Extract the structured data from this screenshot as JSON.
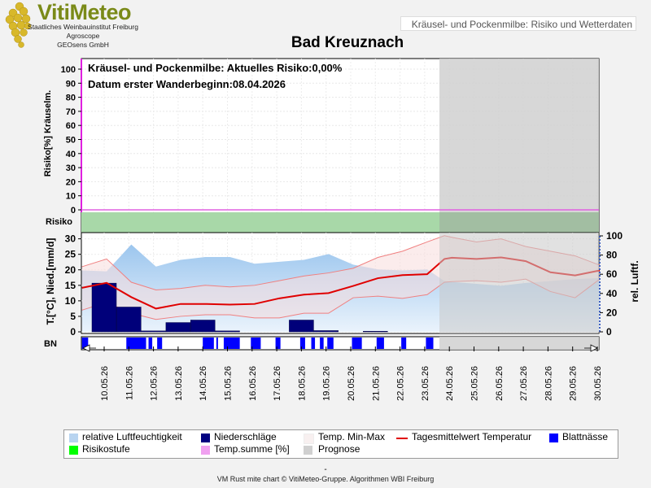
{
  "header": {
    "logo_text": "VitiMeteo",
    "logo_lines": [
      "Staatliches Weinbauinstitut Freiburg",
      "Agroscope",
      "GEOsens GmbH"
    ],
    "banner": "Kräusel- und Pockenmilbe: Risiko und Wetterdaten",
    "station": "Bad Kreuznach"
  },
  "risk_panel": {
    "info_line1": "Kräusel- und Pockenmilbe: Aktuelles Risiko:0,00%",
    "info_line2": "Datum  erster Wanderbeginn:08.04.2026",
    "ylabel": "Risiko[%] Kräuselm.",
    "band_label": "Risiko",
    "yticks": [
      0,
      10,
      20,
      30,
      40,
      50,
      60,
      70,
      80,
      90,
      100
    ]
  },
  "weather_panel": {
    "ylabel_left": "T.[°C], Nied.[mm/d]",
    "ylabel_right": "rel. Luftf.",
    "yticks_left": [
      0,
      5,
      10,
      15,
      20,
      25,
      30
    ],
    "yticks_right": [
      0,
      20,
      40,
      60,
      80,
      100
    ],
    "bn_label": "BN"
  },
  "chart_data": {
    "type": "line",
    "dates": [
      "10.05.26",
      "11.05.26",
      "12.05.26",
      "13.05.26",
      "14.05.26",
      "15.05.26",
      "16.05.26",
      "17.05.26",
      "18.05.26",
      "19.05.26",
      "20.05.26",
      "21.05.26",
      "22.05.26",
      "23.05.26",
      "24.05.26",
      "25.05.26",
      "26.05.26",
      "27.05.26",
      "28.05.26",
      "29.05.26",
      "30.05.26"
    ],
    "forecast_start": "23.05.26",
    "risk_values": [
      0,
      0,
      0,
      0,
      0,
      0,
      0,
      0,
      0,
      0,
      0,
      0,
      0,
      0,
      0,
      0,
      0,
      0,
      0,
      0,
      0,
      0
    ],
    "risk_ylim": [
      0,
      100
    ],
    "temp_ylim": [
      0,
      32
    ],
    "humidity_ylim": [
      0,
      100
    ],
    "temp_mean_x": [
      9.1,
      10.1,
      11.1,
      12.1,
      13.1,
      14.1,
      15.1,
      16.1,
      17.1,
      18.1,
      19.1,
      20.1,
      21.1,
      22.1,
      23.1,
      23.8,
      24.1,
      25.1,
      26.1,
      27.1,
      28.1,
      29.1,
      30.1
    ],
    "temp_mean": [
      14.2,
      15.8,
      11.2,
      7.5,
      9.0,
      9.0,
      8.8,
      9.0,
      10.8,
      12.0,
      12.5,
      14.8,
      17.3,
      18.3,
      18.6,
      23.5,
      23.9,
      23.5,
      24.0,
      22.8,
      19.2,
      18.2,
      19.8
    ],
    "temp_min": [
      7,
      9.5,
      6,
      4,
      5,
      5.5,
      5.5,
      4.5,
      4.5,
      6,
      6,
      11,
      11.5,
      10.8,
      12,
      16,
      16.2,
      16.5,
      16,
      17,
      13,
      11,
      17
    ],
    "temp_max": [
      21,
      23.5,
      16,
      13.5,
      14,
      15,
      14.5,
      15,
      16.5,
      18,
      19,
      20.5,
      24,
      26,
      29,
      31,
      30.5,
      29,
      30,
      27.5,
      26,
      24.5,
      21.5
    ],
    "humidity": [
      64,
      63,
      91,
      68,
      75,
      78,
      78,
      71,
      73,
      75,
      81,
      70,
      65,
      64,
      65,
      53,
      52,
      50,
      48,
      51,
      53,
      55,
      56
    ],
    "precipitation": [
      15.7,
      8.0,
      0.3,
      3.0,
      3.8,
      0.3,
      0.0,
      0.0,
      3.8,
      0.4,
      0.0,
      0.2,
      0.0,
      0.0,
      0.0,
      0.0,
      0.0,
      0.0,
      0.0,
      0.0,
      0.0
    ],
    "leaf_wetness_segments": [
      [
        9.1,
        9.35
      ],
      [
        10.9,
        11.7
      ],
      [
        11.8,
        11.95
      ],
      [
        12.15,
        12.35
      ],
      [
        14.0,
        14.45
      ],
      [
        14.55,
        14.6
      ],
      [
        14.85,
        15.5
      ],
      [
        15.95,
        16.35
      ],
      [
        16.95,
        17.15
      ],
      [
        17.95,
        18.15
      ],
      [
        18.4,
        18.55
      ],
      [
        18.75,
        18.9
      ],
      [
        19.05,
        19.3
      ],
      [
        20.05,
        20.45
      ],
      [
        21.05,
        21.35
      ],
      [
        22.05,
        22.25
      ],
      [
        23.05,
        23.35
      ]
    ],
    "legend": [
      {
        "label": "relative Luftfeuchtigkeit",
        "color": "#b8d4f0"
      },
      {
        "label": "Niederschläge",
        "color": "#000080"
      },
      {
        "label": "Temp. Min-Max",
        "color": "#f8f0f0"
      },
      {
        "label": "Tagesmittelwert Temperatur",
        "color": "#e00000"
      },
      {
        "label": "Blattnässe",
        "color": "#0000ff"
      },
      {
        "label": "Risikostufe",
        "color": "#00ff00"
      },
      {
        "label": "Temp.summe [%]",
        "color": "#f0a0f0"
      },
      {
        "label": "Prognose",
        "color": "#d0d0d0"
      }
    ]
  },
  "footer": {
    "dash": "-",
    "credit": "VM Rust mite chart © VitiMeteo-Gruppe. Algorithmen WBI Freiburg"
  }
}
